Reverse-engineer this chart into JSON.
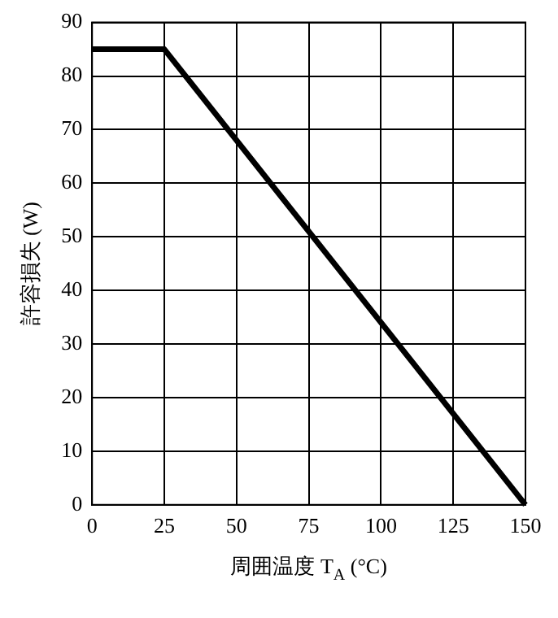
{
  "chart_data": {
    "type": "line",
    "xlabel": "周囲温度 T$_{A}$ (°C)",
    "ylabel": "許容損失 (W)",
    "x": [
      0,
      25,
      150
    ],
    "series": [
      {
        "color": "#000000",
        "values": [
          85,
          85,
          0
        ]
      }
    ],
    "xlim": [
      0,
      150
    ],
    "xticks": [
      0,
      25,
      50,
      75,
      100,
      125,
      150
    ],
    "ylim": [
      0,
      90
    ],
    "yticks": [
      0,
      10,
      20,
      30,
      40,
      50,
      60,
      70,
      80,
      90
    ],
    "grid": true,
    "legend": false,
    "marker": "none",
    "line_style": "solid"
  }
}
